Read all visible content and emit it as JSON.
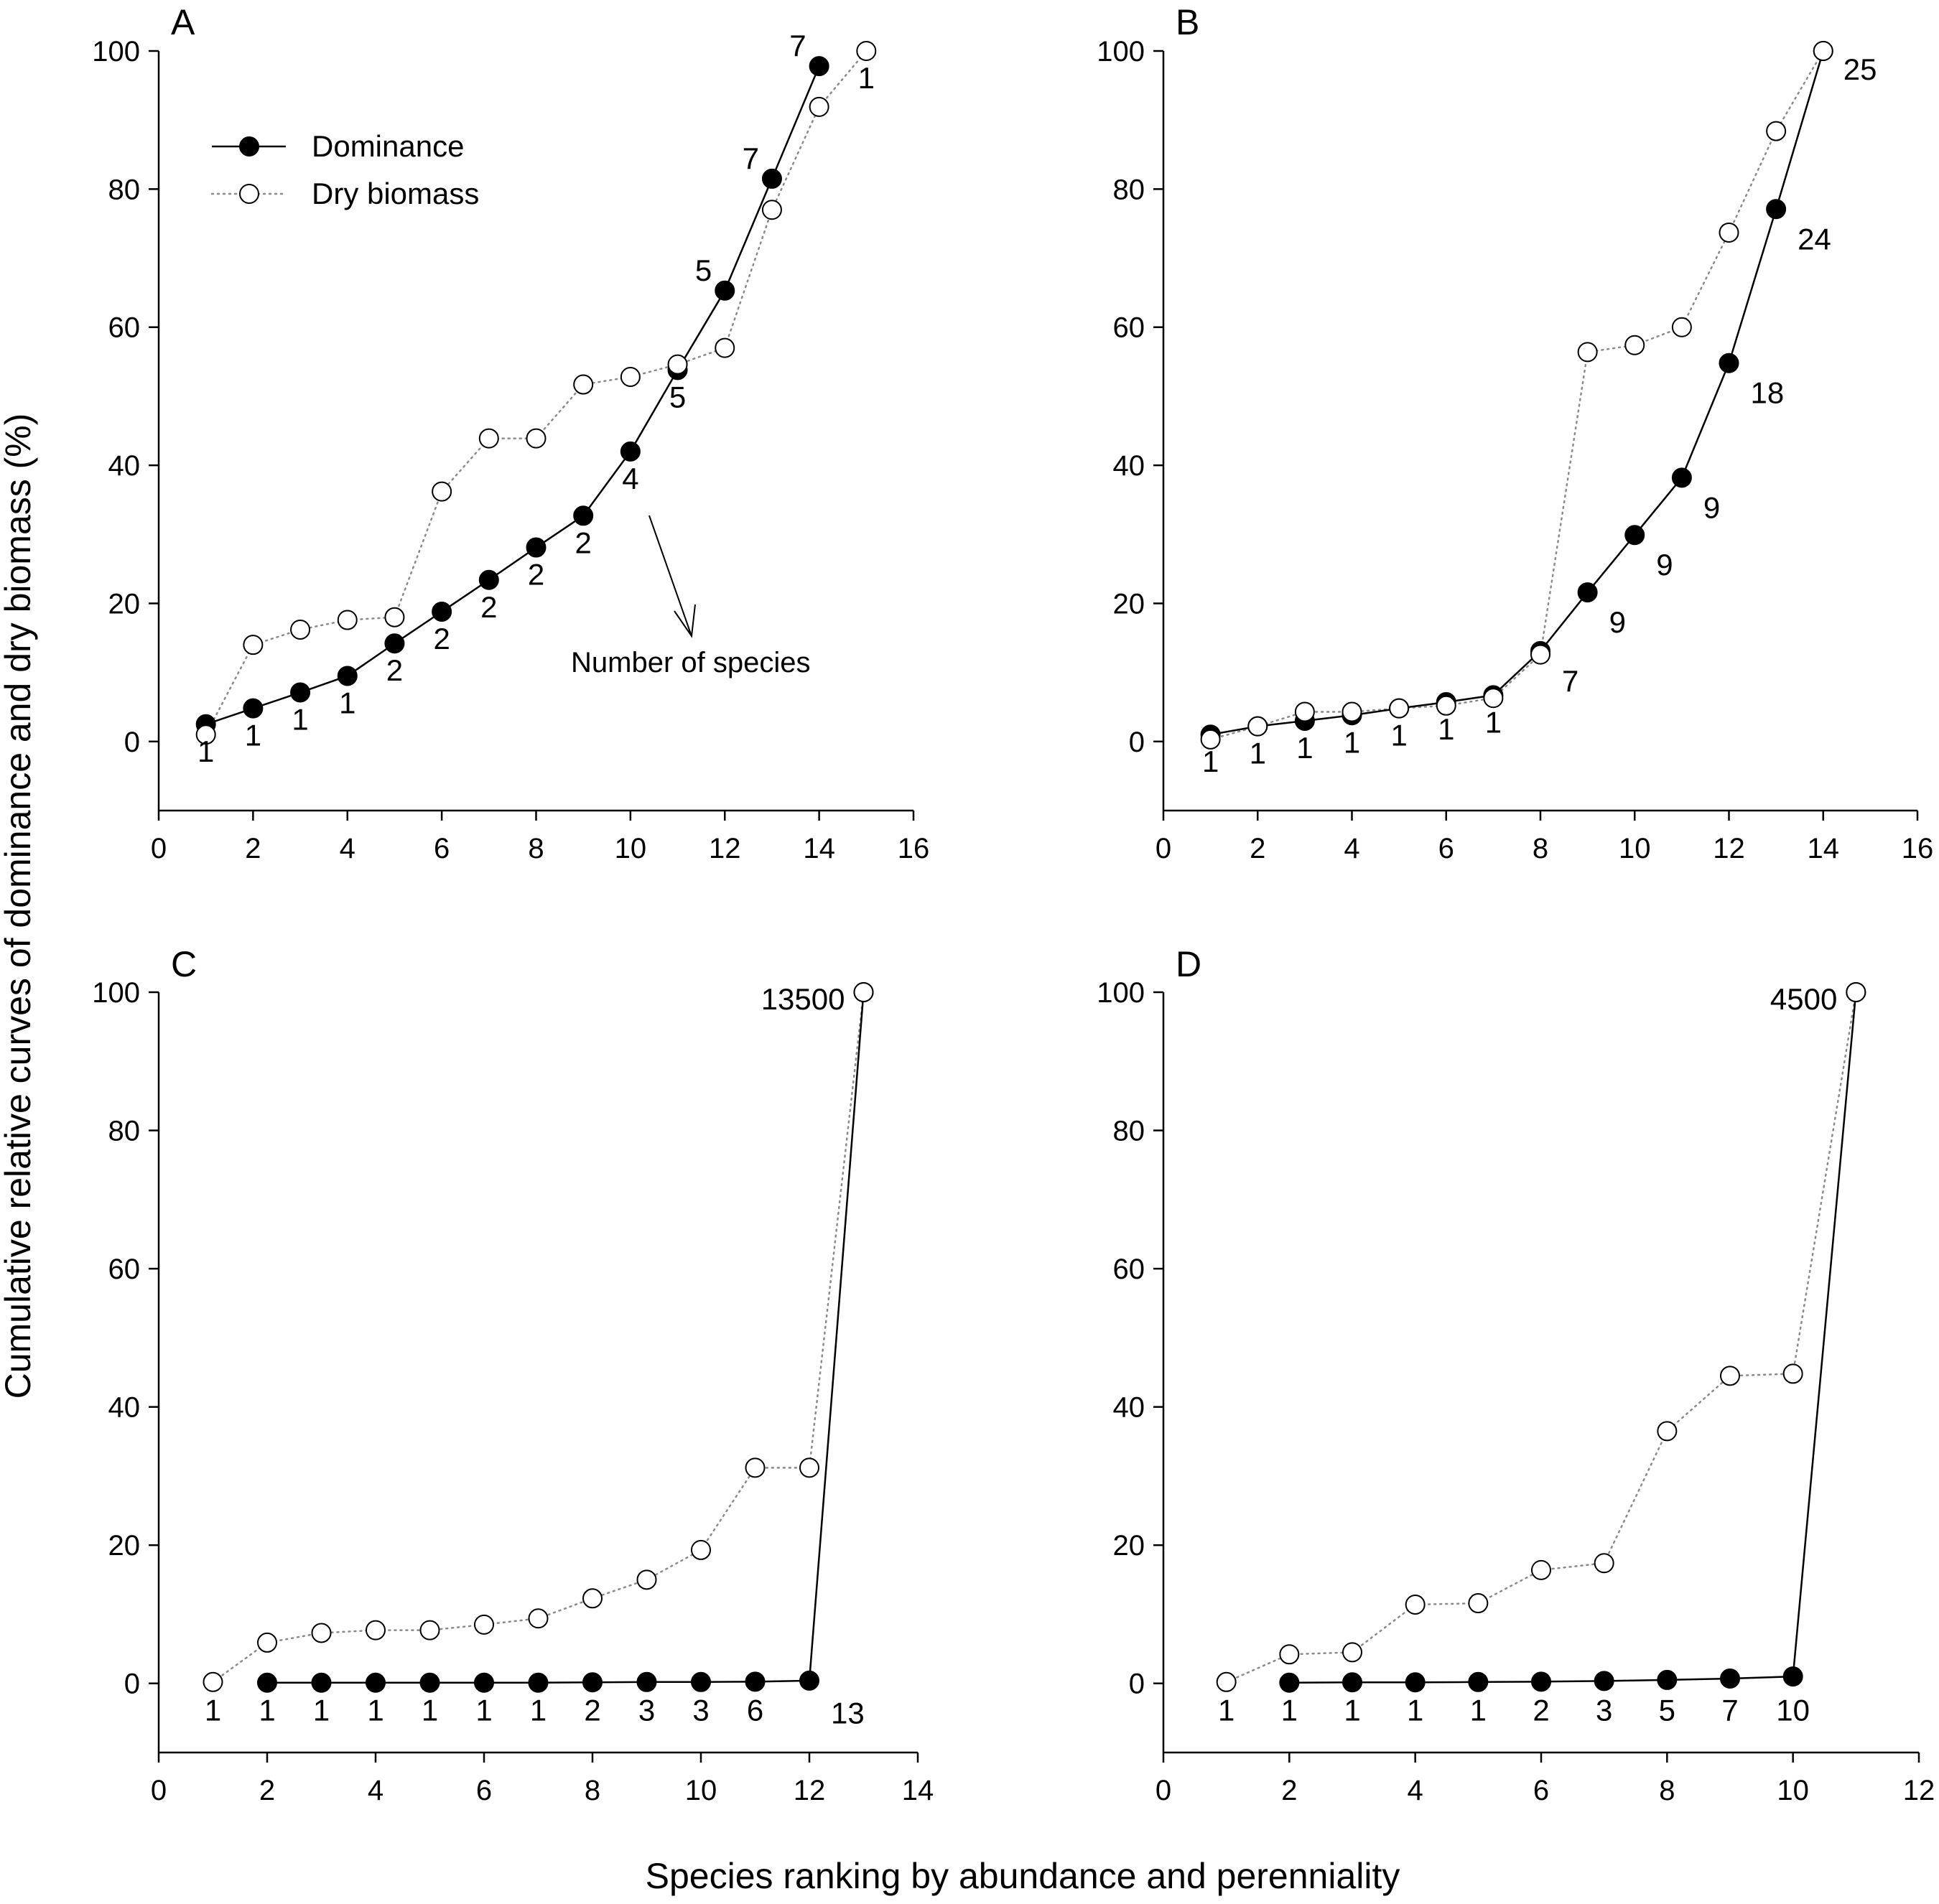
{
  "figure": {
    "ylabel": "Cumulative relative curves of dominance and dry biomass (%)",
    "xlabel": "Species ranking by abundance and perenniality",
    "legend": {
      "dominance": "Dominance",
      "biomass": "Dry biomass",
      "position": "top-left of panel A"
    },
    "note": "Number of species"
  },
  "chart_data": [
    {
      "panel": "A",
      "type": "line",
      "xlim": [
        0,
        16
      ],
      "ylim": [
        -10,
        100
      ],
      "xticks": [
        0,
        2,
        4,
        6,
        8,
        10,
        12,
        14,
        16
      ],
      "yticks": [
        0,
        20,
        40,
        60,
        80,
        100
      ],
      "grid": false,
      "series": [
        {
          "name": "Dominance",
          "style": "solid",
          "marker": "filled",
          "x": [
            1,
            2,
            3,
            4,
            5,
            6,
            7,
            8,
            9,
            10,
            11,
            12,
            13,
            14
          ],
          "y": [
            2.5,
            4.8,
            7.1,
            9.5,
            14.2,
            18.8,
            23.4,
            28.1,
            32.7,
            42.0,
            53.8,
            65.3,
            81.5,
            97.8
          ]
        },
        {
          "name": "Dry biomass",
          "style": "dotted",
          "marker": "open",
          "x": [
            1,
            2,
            3,
            4,
            5,
            6,
            7,
            8,
            9,
            10,
            11,
            12,
            13,
            14,
            15
          ],
          "y": [
            1.0,
            14.0,
            16.2,
            17.6,
            18.0,
            36.2,
            43.9,
            43.9,
            51.7,
            52.8,
            54.6,
            57.0,
            77.0,
            91.9,
            100.0
          ]
        }
      ],
      "annotations": [
        {
          "text": "1",
          "x": 1,
          "y": 2.5,
          "pos": "below"
        },
        {
          "text": "1",
          "x": 2,
          "y": 4.8,
          "pos": "below"
        },
        {
          "text": "1",
          "x": 3,
          "y": 7.1,
          "pos": "below"
        },
        {
          "text": "1",
          "x": 4,
          "y": 9.5,
          "pos": "below"
        },
        {
          "text": "2",
          "x": 5,
          "y": 14.2,
          "pos": "below"
        },
        {
          "text": "2",
          "x": 6,
          "y": 18.8,
          "pos": "below"
        },
        {
          "text": "2",
          "x": 7,
          "y": 23.4,
          "pos": "below"
        },
        {
          "text": "2",
          "x": 8,
          "y": 28.1,
          "pos": "below"
        },
        {
          "text": "2",
          "x": 9,
          "y": 32.7,
          "pos": "below"
        },
        {
          "text": "4",
          "x": 10,
          "y": 42.0,
          "pos": "below"
        },
        {
          "text": "5",
          "x": 11,
          "y": 53.8,
          "pos": "below"
        },
        {
          "text": "5",
          "x": 12,
          "y": 65.3,
          "pos": "above-left"
        },
        {
          "text": "7",
          "x": 13,
          "y": 81.5,
          "pos": "above-left"
        },
        {
          "text": "7",
          "x": 14,
          "y": 97.8,
          "pos": "above-left"
        },
        {
          "text": "1",
          "x": 15,
          "y": 100,
          "pos": "below"
        }
      ]
    },
    {
      "panel": "B",
      "type": "line",
      "xlim": [
        0,
        16
      ],
      "ylim": [
        -10,
        100
      ],
      "xticks": [
        0,
        2,
        4,
        6,
        8,
        10,
        12,
        14,
        16
      ],
      "yticks": [
        0,
        20,
        40,
        60,
        80,
        100
      ],
      "grid": false,
      "series": [
        {
          "name": "Dominance",
          "style": "solid",
          "marker": "filled",
          "x": [
            1,
            2,
            3,
            4,
            5,
            6,
            7,
            8,
            9,
            10,
            11,
            12,
            13,
            14
          ],
          "y": [
            1.0,
            2.2,
            3.0,
            3.8,
            4.8,
            5.7,
            6.7,
            13.1,
            21.6,
            29.9,
            38.2,
            54.8,
            77.1,
            100.0
          ]
        },
        {
          "name": "Dry biomass",
          "style": "dotted",
          "marker": "open",
          "x": [
            1,
            2,
            3,
            4,
            5,
            6,
            7,
            8,
            9,
            10,
            11,
            12,
            13,
            14
          ],
          "y": [
            0.3,
            2.2,
            4.3,
            4.3,
            4.8,
            5.2,
            6.3,
            12.6,
            56.4,
            57.4,
            60.0,
            73.7,
            88.4,
            100.0
          ]
        }
      ],
      "annotations": [
        {
          "text": "1",
          "x": 1,
          "y": 1.0,
          "pos": "below"
        },
        {
          "text": "1",
          "x": 2,
          "y": 2.2,
          "pos": "below"
        },
        {
          "text": "1",
          "x": 3,
          "y": 3.0,
          "pos": "below"
        },
        {
          "text": "1",
          "x": 4,
          "y": 3.8,
          "pos": "below"
        },
        {
          "text": "1",
          "x": 5,
          "y": 4.8,
          "pos": "below"
        },
        {
          "text": "1",
          "x": 6,
          "y": 5.7,
          "pos": "below"
        },
        {
          "text": "1",
          "x": 7,
          "y": 6.7,
          "pos": "below"
        },
        {
          "text": "7",
          "x": 8,
          "y": 13.1,
          "pos": "below-right"
        },
        {
          "text": "9",
          "x": 9,
          "y": 21.6,
          "pos": "below-right"
        },
        {
          "text": "9",
          "x": 10,
          "y": 29.9,
          "pos": "below-right"
        },
        {
          "text": "9",
          "x": 11,
          "y": 38.2,
          "pos": "below-right"
        },
        {
          "text": "18",
          "x": 12,
          "y": 54.8,
          "pos": "below-right"
        },
        {
          "text": "24",
          "x": 13,
          "y": 77.1,
          "pos": "below-right"
        },
        {
          "text": "25",
          "x": 14,
          "y": 100,
          "pos": "right"
        }
      ]
    },
    {
      "panel": "C",
      "type": "line",
      "xlim": [
        0,
        14
      ],
      "ylim": [
        -10,
        100
      ],
      "xticks": [
        0,
        2,
        4,
        6,
        8,
        10,
        12,
        14
      ],
      "yticks": [
        0,
        20,
        40,
        60,
        80,
        100
      ],
      "grid": false,
      "series": [
        {
          "name": "Dominance",
          "style": "solid",
          "marker": "filled",
          "x": [
            2,
            3,
            4,
            5,
            6,
            7,
            8,
            9,
            10,
            11,
            12,
            13
          ],
          "y": [
            0.1,
            0.1,
            0.1,
            0.1,
            0.1,
            0.1,
            0.15,
            0.2,
            0.2,
            0.25,
            0.4,
            100.0
          ]
        },
        {
          "name": "Dry biomass",
          "style": "dotted",
          "marker": "open",
          "x": [
            1,
            2,
            3,
            4,
            5,
            6,
            7,
            8,
            9,
            10,
            11,
            12,
            13
          ],
          "y": [
            0.2,
            5.9,
            7.3,
            7.7,
            7.7,
            8.5,
            9.4,
            12.3,
            15.0,
            19.3,
            31.2,
            31.2,
            100.0
          ]
        }
      ],
      "annotations": [
        {
          "text": "1",
          "x": 1,
          "y": 0,
          "pos": "below"
        },
        {
          "text": "1",
          "x": 2,
          "y": 0,
          "pos": "below"
        },
        {
          "text": "1",
          "x": 3,
          "y": 0,
          "pos": "below"
        },
        {
          "text": "1",
          "x": 4,
          "y": 0,
          "pos": "below"
        },
        {
          "text": "1",
          "x": 5,
          "y": 0,
          "pos": "below"
        },
        {
          "text": "1",
          "x": 6,
          "y": 0,
          "pos": "below"
        },
        {
          "text": "1",
          "x": 7,
          "y": 0,
          "pos": "below"
        },
        {
          "text": "2",
          "x": 8,
          "y": 0,
          "pos": "below"
        },
        {
          "text": "3",
          "x": 9,
          "y": 0,
          "pos": "below"
        },
        {
          "text": "3",
          "x": 10,
          "y": 0,
          "pos": "below"
        },
        {
          "text": "6",
          "x": 11,
          "y": 0,
          "pos": "below"
        },
        {
          "text": "13",
          "x": 12,
          "y": 0,
          "pos": "below-right"
        },
        {
          "text": "13500",
          "x": 13,
          "y": 100,
          "pos": "left"
        }
      ]
    },
    {
      "panel": "D",
      "type": "line",
      "xlim": [
        0,
        12
      ],
      "ylim": [
        -10,
        100
      ],
      "xticks": [
        0,
        2,
        4,
        6,
        8,
        10,
        12
      ],
      "yticks": [
        0,
        20,
        40,
        60,
        80,
        100
      ],
      "grid": false,
      "series": [
        {
          "name": "Dominance",
          "style": "solid",
          "marker": "filled",
          "x": [
            2,
            3,
            4,
            5,
            6,
            7,
            8,
            9,
            10,
            11
          ],
          "y": [
            0.1,
            0.15,
            0.15,
            0.2,
            0.25,
            0.35,
            0.5,
            0.7,
            1.0,
            100.0
          ]
        },
        {
          "name": "Dry biomass",
          "style": "dotted",
          "marker": "open",
          "x": [
            1,
            2,
            3,
            4,
            5,
            6,
            7,
            8,
            9,
            10,
            11
          ],
          "y": [
            0.2,
            4.2,
            4.5,
            11.4,
            11.6,
            16.4,
            17.4,
            36.5,
            44.5,
            44.8,
            100.0
          ]
        }
      ],
      "annotations": [
        {
          "text": "1",
          "x": 1,
          "y": 0,
          "pos": "below"
        },
        {
          "text": "1",
          "x": 2,
          "y": 0,
          "pos": "below"
        },
        {
          "text": "1",
          "x": 3,
          "y": 0,
          "pos": "below"
        },
        {
          "text": "1",
          "x": 4,
          "y": 0,
          "pos": "below"
        },
        {
          "text": "1",
          "x": 5,
          "y": 0,
          "pos": "below"
        },
        {
          "text": "2",
          "x": 6,
          "y": 0,
          "pos": "below"
        },
        {
          "text": "3",
          "x": 7,
          "y": 0,
          "pos": "below"
        },
        {
          "text": "5",
          "x": 8,
          "y": 0,
          "pos": "below"
        },
        {
          "text": "7",
          "x": 9,
          "y": 0,
          "pos": "below"
        },
        {
          "text": "10",
          "x": 10,
          "y": 0,
          "pos": "below"
        },
        {
          "text": "4500",
          "x": 11,
          "y": 100,
          "pos": "left"
        }
      ]
    }
  ]
}
